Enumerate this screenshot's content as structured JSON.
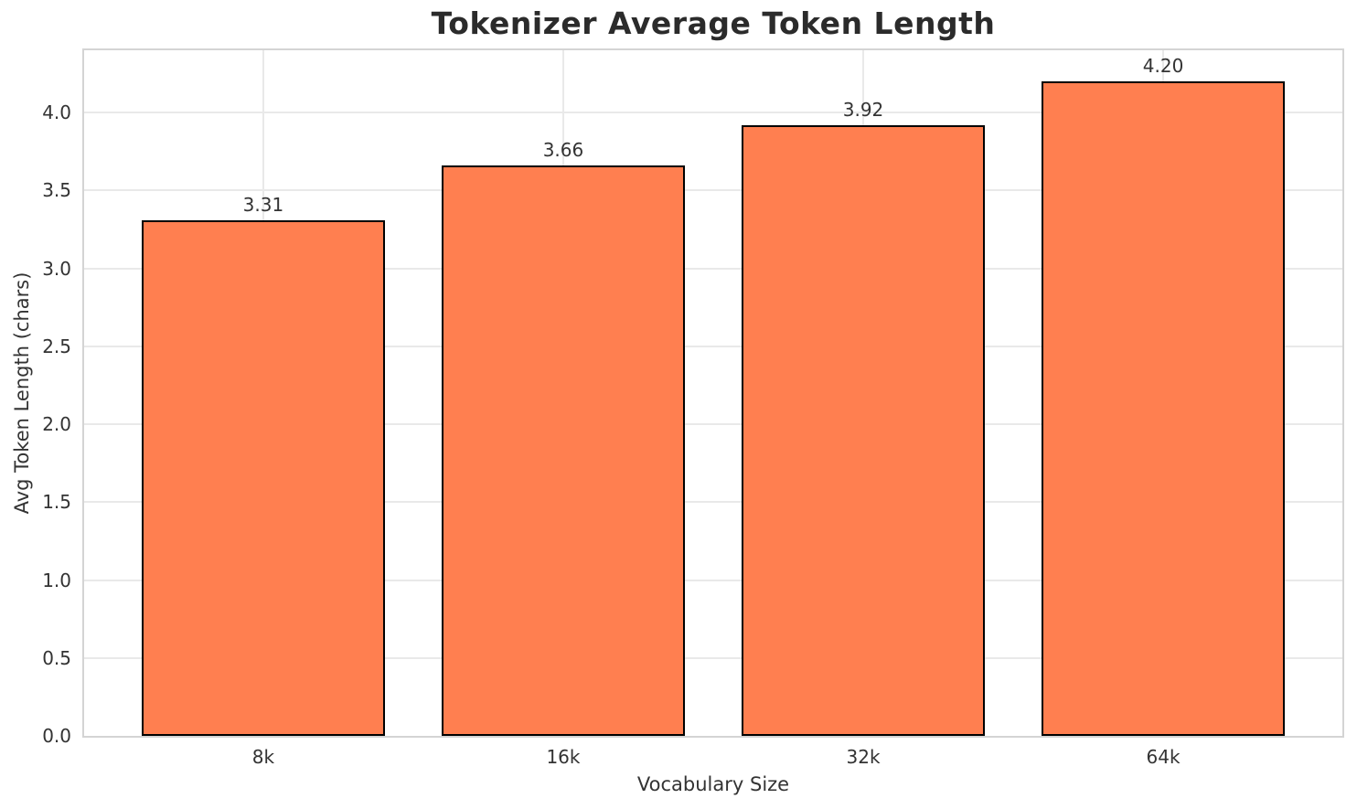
{
  "chart_data": {
    "type": "bar",
    "title": "Tokenizer Average Token Length",
    "categories": [
      "8k",
      "16k",
      "32k",
      "64k"
    ],
    "values": [
      3.31,
      3.66,
      3.92,
      4.2
    ],
    "value_labels": [
      "3.31",
      "3.66",
      "3.92",
      "4.20"
    ],
    "xlabel": "Vocabulary Size",
    "ylabel": "Avg Token Length (chars)",
    "ylim": [
      0,
      4.4
    ],
    "yticks": [
      0.0,
      0.5,
      1.0,
      1.5,
      2.0,
      2.5,
      3.0,
      3.5,
      4.0
    ],
    "ytick_labels": [
      "0.0",
      "0.5",
      "1.0",
      "1.5",
      "2.0",
      "2.5",
      "3.0",
      "3.5",
      "4.0"
    ],
    "grid": true,
    "legend": null,
    "colors": {
      "bar_fill": "#FF7F50",
      "bar_edge": "#000000",
      "gridline": "#e9e9e9",
      "spine": "#d4d4d4",
      "title_text": "#2b2b2b",
      "tick_text": "#333333",
      "background": "#ffffff"
    }
  }
}
